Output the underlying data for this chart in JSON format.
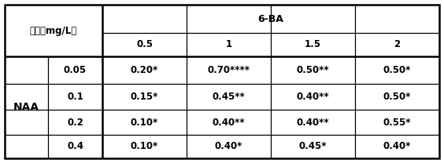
{
  "title_6ba": "6-BA",
  "label_conc": "浓度（mg/L）",
  "label_naa": "NAA",
  "col_headers": [
    "0.5",
    "1",
    "1.5",
    "2"
  ],
  "row_headers": [
    "0.05",
    "0.1",
    "0.2",
    "0.4"
  ],
  "cells": [
    [
      "0.20*",
      "0.70****",
      "0.50**",
      "0.50*"
    ],
    [
      "0.15*",
      "0.45**",
      "0.40**",
      "0.50*"
    ],
    [
      "0.10*",
      "0.40**",
      "0.40**",
      "0.55*"
    ],
    [
      "0.10*",
      "0.40*",
      "0.45*",
      "0.40*"
    ]
  ],
  "border_color": "#000000",
  "text_color": "#000000",
  "font_size": 8.5,
  "header_font_size": 8.5,
  "title_font_size": 9
}
